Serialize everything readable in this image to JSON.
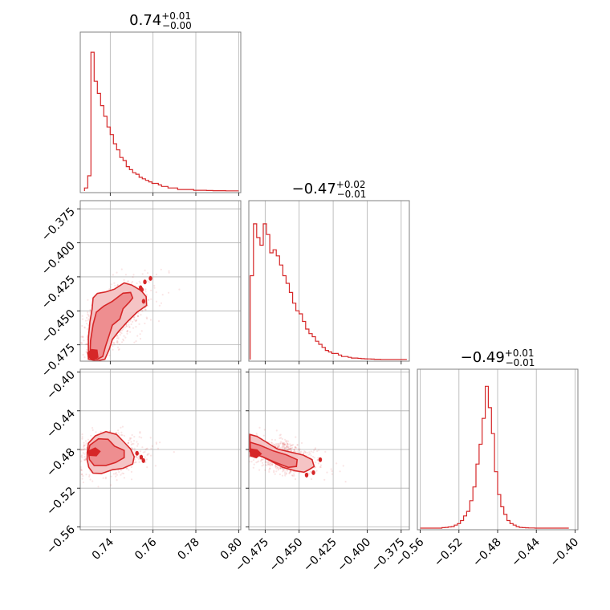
{
  "chart_data": {
    "type": "corner",
    "color": "#d62728",
    "fill_light": "#f5c4c5",
    "fill_mid": "#ee8e90",
    "titles": [
      {
        "main": "0.74",
        "sup": "+0.01",
        "sub": "−0.00"
      },
      {
        "main": "−0.47",
        "sup": "+0.02",
        "sub": "−0.01"
      },
      {
        "main": "−0.49",
        "sup": "+0.01",
        "sub": "−0.01"
      }
    ],
    "params": [
      {
        "range": [
          0.726,
          0.801
        ],
        "ticks": [
          0.74,
          0.76,
          0.78,
          0.8
        ],
        "tick_labels": [
          "0.74",
          "0.76",
          "0.78",
          "0.80"
        ]
      },
      {
        "range": [
          -0.487,
          -0.369
        ],
        "ticks": [
          -0.475,
          -0.45,
          -0.425,
          -0.4,
          -0.375
        ],
        "tick_labels": [
          "−0.475",
          "−0.450",
          "−0.425",
          "−0.400",
          "−0.375"
        ]
      },
      {
        "range": [
          -0.563,
          -0.397
        ],
        "ticks": [
          -0.56,
          -0.52,
          -0.48,
          -0.44,
          -0.4
        ],
        "tick_labels": [
          "−0.56",
          "−0.52",
          "−0.48",
          "−0.44",
          "−0.40"
        ]
      }
    ],
    "histograms": [
      {
        "edges_start": 0.728,
        "bin_width": 0.0015,
        "counts": [
          0.02,
          0.1,
          0.91,
          0.72,
          0.64,
          0.56,
          0.49,
          0.42,
          0.37,
          0.31,
          0.27,
          0.22,
          0.2,
          0.16,
          0.14,
          0.12,
          0.11,
          0.09,
          0.08,
          0.07,
          0.06,
          0.05,
          0.05,
          0.04,
          0.03,
          0.03,
          0.02,
          0.02,
          0.02,
          0.01,
          0.01,
          0.01,
          0.01,
          0.01,
          0.005,
          0.005,
          0.005,
          0.005,
          0.003,
          0.003,
          0.002,
          0.002,
          0.002,
          0.002,
          0.001,
          0.001,
          0.001,
          0.001
        ]
      },
      {
        "edges_start": -0.486,
        "bin_width": 0.0024,
        "counts": [
          0.55,
          0.89,
          0.8,
          0.75,
          0.89,
          0.82,
          0.7,
          0.72,
          0.68,
          0.62,
          0.55,
          0.5,
          0.44,
          0.37,
          0.32,
          0.3,
          0.25,
          0.2,
          0.17,
          0.15,
          0.12,
          0.1,
          0.08,
          0.06,
          0.05,
          0.04,
          0.04,
          0.03,
          0.02,
          0.02,
          0.015,
          0.01,
          0.01,
          0.008,
          0.006,
          0.005,
          0.004,
          0.003,
          0.002,
          0.002,
          0.001,
          0.001,
          0.001,
          0.001,
          0.001,
          0.001,
          0.001,
          0.001
        ]
      },
      {
        "edges_start": -0.56,
        "bin_width": 0.0032,
        "counts": [
          0,
          0,
          0,
          0,
          0,
          0,
          0,
          0.003,
          0.005,
          0.008,
          0.01,
          0.02,
          0.03,
          0.05,
          0.08,
          0.11,
          0.18,
          0.27,
          0.42,
          0.55,
          0.72,
          0.93,
          0.79,
          0.62,
          0.37,
          0.22,
          0.14,
          0.09,
          0.05,
          0.03,
          0.02,
          0.01,
          0.005,
          0.003,
          0.002,
          0.001,
          0.001,
          0,
          0,
          0,
          0,
          0,
          0,
          0,
          0,
          0,
          0,
          0
        ]
      }
    ],
    "contours": {
      "1_0": {
        "outer": [
          [
            0.7298,
            -0.4855
          ],
          [
            0.734,
            -0.4867
          ],
          [
            0.7375,
            -0.4855
          ],
          [
            0.7396,
            -0.478
          ],
          [
            0.741,
            -0.471
          ],
          [
            0.744,
            -0.465
          ],
          [
            0.748,
            -0.458
          ],
          [
            0.7525,
            -0.451
          ],
          [
            0.757,
            -0.446
          ],
          [
            0.7568,
            -0.4395
          ],
          [
            0.7545,
            -0.4352
          ],
          [
            0.75,
            -0.431
          ],
          [
            0.7465,
            -0.4295
          ],
          [
            0.742,
            -0.434
          ],
          [
            0.738,
            -0.436
          ],
          [
            0.734,
            -0.4372
          ],
          [
            0.732,
            -0.4405
          ],
          [
            0.7315,
            -0.449
          ],
          [
            0.7305,
            -0.458
          ],
          [
            0.7298,
            -0.47
          ]
        ],
        "inner": [
          [
            0.7305,
            -0.4845
          ],
          [
            0.734,
            -0.4855
          ],
          [
            0.7365,
            -0.4835
          ],
          [
            0.7378,
            -0.476
          ],
          [
            0.7395,
            -0.468
          ],
          [
            0.741,
            -0.4605
          ],
          [
            0.7445,
            -0.456
          ],
          [
            0.746,
            -0.4485
          ],
          [
            0.749,
            -0.4435
          ],
          [
            0.7505,
            -0.4405
          ],
          [
            0.7495,
            -0.4365
          ],
          [
            0.746,
            -0.437
          ],
          [
            0.741,
            -0.443
          ],
          [
            0.737,
            -0.4465
          ],
          [
            0.7335,
            -0.451
          ],
          [
            0.732,
            -0.46
          ],
          [
            0.7308,
            -0.472
          ]
        ],
        "core": [
          [
            0.7298,
            -0.4838
          ],
          [
            0.7318,
            -0.486
          ],
          [
            0.7342,
            -0.484
          ],
          [
            0.7338,
            -0.479
          ],
          [
            0.7312,
            -0.4785
          ],
          [
            0.7295,
            -0.481
          ]
        ],
        "islands": [
          [
            0.7542,
            -0.433
          ],
          [
            0.7548,
            -0.4345
          ],
          [
            0.7562,
            -0.4287
          ],
          [
            0.7556,
            -0.443
          ],
          [
            0.7588,
            -0.4262
          ]
        ]
      },
      "2_0": {
        "outer": [
          [
            0.7298,
            -0.4735
          ],
          [
            0.733,
            -0.466
          ],
          [
            0.738,
            -0.4615
          ],
          [
            0.743,
            -0.4645
          ],
          [
            0.7465,
            -0.4725
          ],
          [
            0.7495,
            -0.4795
          ],
          [
            0.7512,
            -0.4875
          ],
          [
            0.7505,
            -0.495
          ],
          [
            0.746,
            -0.4995
          ],
          [
            0.741,
            -0.501
          ],
          [
            0.736,
            -0.5048
          ],
          [
            0.732,
            -0.5045
          ],
          [
            0.73,
            -0.4985
          ],
          [
            0.7292,
            -0.4905
          ],
          [
            0.7293,
            -0.482
          ]
        ],
        "inner": [
          [
            0.7305,
            -0.4755
          ],
          [
            0.7345,
            -0.469
          ],
          [
            0.739,
            -0.4695
          ],
          [
            0.742,
            -0.4765
          ],
          [
            0.7465,
            -0.481
          ],
          [
            0.7465,
            -0.4885
          ],
          [
            0.7425,
            -0.4935
          ],
          [
            0.738,
            -0.4965
          ],
          [
            0.7325,
            -0.4965
          ],
          [
            0.7303,
            -0.4905
          ],
          [
            0.7298,
            -0.482
          ]
        ],
        "core": [
          [
            0.73,
            -0.4815
          ],
          [
            0.733,
            -0.4785
          ],
          [
            0.7352,
            -0.482
          ],
          [
            0.7335,
            -0.4865
          ],
          [
            0.7305,
            -0.486
          ]
        ],
        "islands": [
          [
            0.7525,
            -0.484
          ],
          [
            0.7545,
            -0.488
          ],
          [
            0.7555,
            -0.4915
          ]
        ]
      },
      "2_1": {
        "outer": [
          [
            -0.4862,
            -0.4645
          ],
          [
            -0.481,
            -0.4665
          ],
          [
            -0.474,
            -0.4725
          ],
          [
            -0.466,
            -0.4795
          ],
          [
            -0.457,
            -0.4825
          ],
          [
            -0.447,
            -0.4858
          ],
          [
            -0.4405,
            -0.4905
          ],
          [
            -0.439,
            -0.4975
          ],
          [
            -0.4435,
            -0.5015
          ],
          [
            -0.4465,
            -0.5035
          ],
          [
            -0.453,
            -0.502
          ],
          [
            -0.462,
            -0.4985
          ],
          [
            -0.472,
            -0.491
          ],
          [
            -0.48,
            -0.4855
          ],
          [
            -0.4862,
            -0.482
          ]
        ],
        "inner": [
          [
            -0.486,
            -0.4725
          ],
          [
            -0.479,
            -0.4755
          ],
          [
            -0.469,
            -0.4815
          ],
          [
            -0.4595,
            -0.4855
          ],
          [
            -0.4515,
            -0.4905
          ],
          [
            -0.452,
            -0.4975
          ],
          [
            -0.458,
            -0.4985
          ],
          [
            -0.468,
            -0.493
          ],
          [
            -0.477,
            -0.4875
          ],
          [
            -0.4858,
            -0.4835
          ]
        ],
        "core": [
          [
            -0.4858,
            -0.4795
          ],
          [
            -0.481,
            -0.4805
          ],
          [
            -0.478,
            -0.4845
          ],
          [
            -0.4815,
            -0.4885
          ],
          [
            -0.4858,
            -0.4865
          ]
        ],
        "islands": [
          [
            -0.4345,
            -0.4905
          ],
          [
            -0.4395,
            -0.504
          ],
          [
            -0.4445,
            -0.5065
          ]
        ]
      }
    },
    "scatter_counts": {
      "1_0": 900,
      "2_0": 900,
      "2_1": 900
    }
  }
}
